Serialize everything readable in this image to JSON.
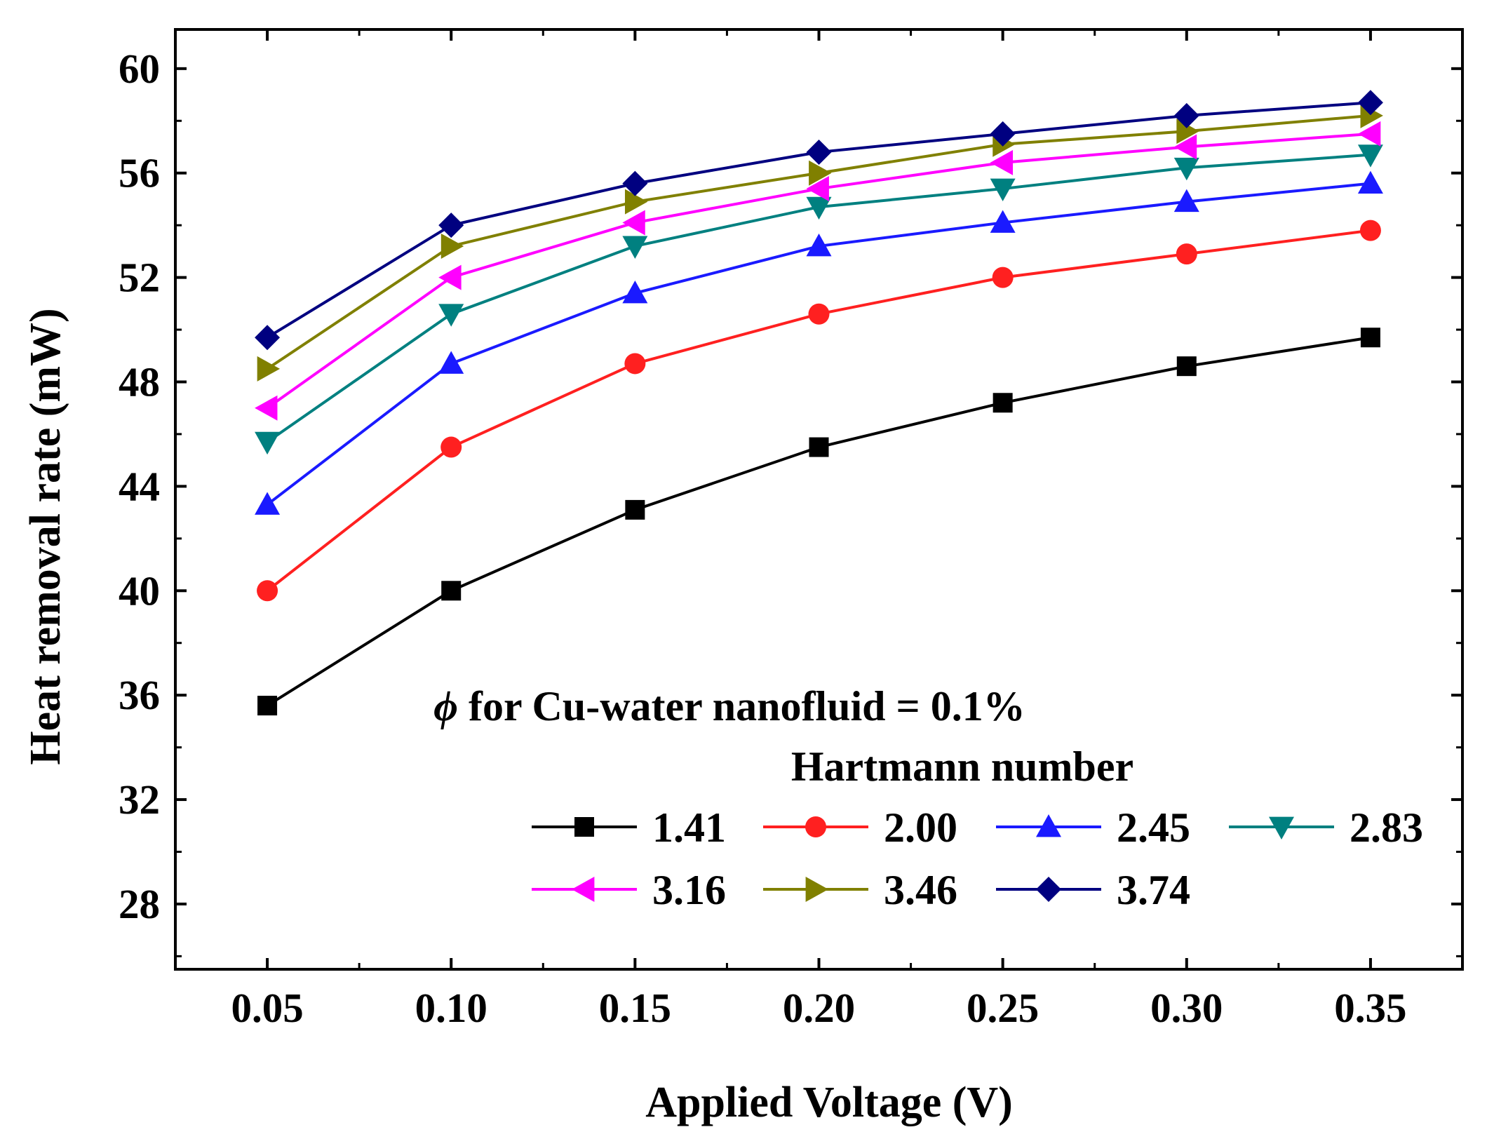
{
  "chart_data": {
    "type": "line",
    "xlabel": "Applied Voltage (V)",
    "ylabel": "Heat removal rate (mW)",
    "xlim": [
      0.025,
      0.375
    ],
    "ylim": [
      25.5,
      61.5
    ],
    "x_ticks": [
      "0.05",
      "0.10",
      "0.15",
      "0.20",
      "0.25",
      "0.30",
      "0.35"
    ],
    "y_ticks": [
      "28",
      "32",
      "36",
      "40",
      "44",
      "48",
      "52",
      "56",
      "60"
    ],
    "x": [
      0.05,
      0.1,
      0.15,
      0.2,
      0.25,
      0.3,
      0.35
    ],
    "annotation": {
      "symbol": "ϕ",
      "text": " for Cu-water nanofluid = 0.1%"
    },
    "legend_title": "Hartmann number",
    "series": [
      {
        "name": "1.41",
        "color": "#000000",
        "marker": "square",
        "values": [
          35.6,
          40.0,
          43.1,
          45.5,
          47.2,
          48.6,
          49.7
        ]
      },
      {
        "name": "2.00",
        "color": "#ff2020",
        "marker": "circle",
        "values": [
          40.0,
          45.5,
          48.7,
          50.6,
          52.0,
          52.9,
          53.8
        ]
      },
      {
        "name": "2.45",
        "color": "#1a1aff",
        "marker": "triangle-up",
        "values": [
          43.3,
          48.7,
          51.4,
          53.2,
          54.1,
          54.9,
          55.6
        ]
      },
      {
        "name": "2.83",
        "color": "#008080",
        "marker": "triangle-down",
        "values": [
          45.7,
          50.6,
          53.2,
          54.7,
          55.4,
          56.2,
          56.7
        ]
      },
      {
        "name": "3.16",
        "color": "#ff00ff",
        "marker": "triangle-left",
        "values": [
          47.0,
          52.0,
          54.1,
          55.4,
          56.4,
          57.0,
          57.5
        ]
      },
      {
        "name": "3.46",
        "color": "#808000",
        "marker": "triangle-right",
        "values": [
          48.5,
          53.2,
          54.9,
          56.0,
          57.1,
          57.6,
          58.2
        ]
      },
      {
        "name": "3.74",
        "color": "#000080",
        "marker": "diamond",
        "values": [
          49.7,
          54.0,
          55.6,
          56.8,
          57.5,
          58.2,
          58.7
        ]
      }
    ]
  }
}
